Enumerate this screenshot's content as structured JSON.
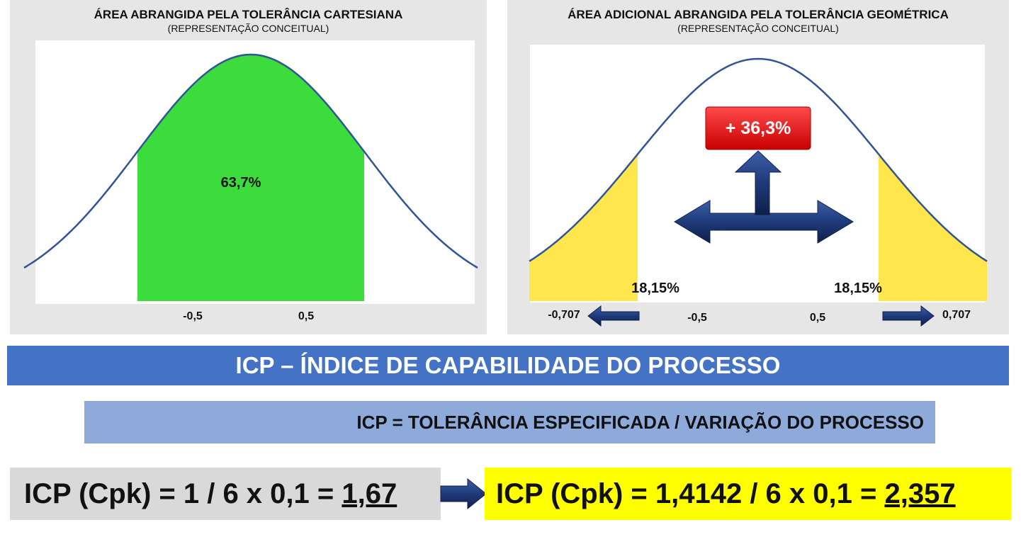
{
  "left_panel": {
    "title": "ÁREA ABRANGIDA PELA TOLERÂNCIA CARTESIANA",
    "subtitle": "(REPRESENTAÇÃO CONCEITUAL)",
    "area_label": "63,7%",
    "ticks": [
      "-0,5",
      "0,5"
    ]
  },
  "right_panel": {
    "title": "ÁREA ADICIONAL ABRANGIDA PELA TOLERÂNCIA GEOMÉTRICA",
    "subtitle": "(REPRESENTAÇÃO CONCEITUAL)",
    "increase_label": "+ 36,3%",
    "left_area_label": "18,15%",
    "right_area_label": "18,15%",
    "ticks": [
      "-0,707",
      "-0,5",
      "0,5",
      "0,707"
    ]
  },
  "banner": {
    "text": "ICP – ÍNDICE DE CAPABILIDADE DO PROCESSO"
  },
  "formula": {
    "text": "ICP = TOLERÂNCIA ESPECIFICADA / VARIAÇÃO DO PROCESSO"
  },
  "calc_left": {
    "prefix": "ICP (Cpk) = 1 / 6 x 0,1 = ",
    "result": "1,67"
  },
  "calc_right": {
    "prefix": "ICP (Cpk) = 1,4142 / 6 x 0,1 = ",
    "result": "2,357"
  },
  "colors": {
    "curve": "#2f5597",
    "green_fill": "#3ddc3d",
    "yellow_fill": "#ffe64d",
    "banner": "#4472c4",
    "formula_bg": "#8eaadb",
    "badge_red": "#ee1c1c",
    "arrow_navy": "#1f3a7a",
    "highlight_yellow": "#ffff00"
  },
  "chart_data": [
    {
      "type": "area",
      "title": "ÁREA ABRANGIDA PELA TOLERÂNCIA CARTESIANA",
      "subtitle": "(REPRESENTAÇÃO CONCEITUAL)",
      "distribution": "normal",
      "shaded_range": [
        -0.5,
        0.5
      ],
      "annotations": [
        "63,7%"
      ],
      "x_ticks": [
        -0.5,
        0.5
      ],
      "tick_labels": [
        "-0,5",
        "0,5"
      ]
    },
    {
      "type": "area",
      "title": "ÁREA ADICIONAL ABRANGIDA PELA TOLERÂNCIA GEOMÉTRICA",
      "subtitle": "(REPRESENTAÇÃO CONCEITUAL)",
      "distribution": "normal",
      "shaded_ranges": [
        [
          -0.707,
          -0.5
        ],
        [
          0.5,
          0.707
        ]
      ],
      "annotations": [
        "18,15%",
        "18,15%",
        "+ 36,3%"
      ],
      "x_ticks": [
        -0.707,
        -0.5,
        0.5,
        0.707
      ],
      "tick_labels": [
        "-0,707",
        "-0,5",
        "0,5",
        "0,707"
      ]
    }
  ]
}
